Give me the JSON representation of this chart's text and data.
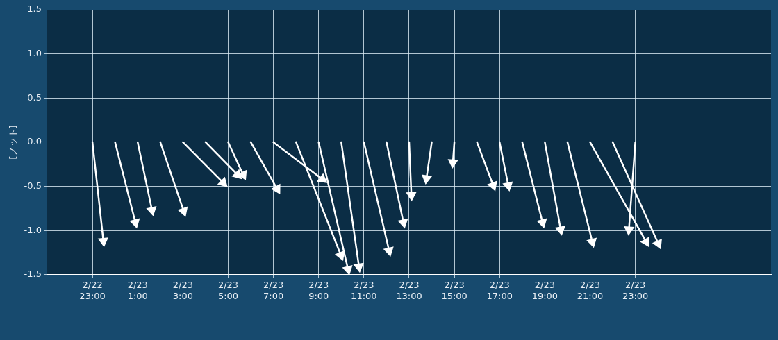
{
  "chart_data": {
    "type": "line",
    "ylabel": "[ノット]",
    "xlim": [
      "--02-22T21:00",
      "--02-24T05:00"
    ],
    "xticks": [
      {
        "value": "--02-22T23:00",
        "label": "2/22\n23:00"
      },
      {
        "value": "--02-23T01:00",
        "label": "2/23\n1:00"
      },
      {
        "value": "--02-23T03:00",
        "label": "2/23\n3:00"
      },
      {
        "value": "--02-23T05:00",
        "label": "2/23\n5:00"
      },
      {
        "value": "--02-23T07:00",
        "label": "2/23\n7:00"
      },
      {
        "value": "--02-23T09:00",
        "label": "2/23\n9:00"
      },
      {
        "value": "--02-23T11:00",
        "label": "2/23\n11:00"
      },
      {
        "value": "--02-23T13:00",
        "label": "2/23\n13:00"
      },
      {
        "value": "--02-23T15:00",
        "label": "2/23\n15:00"
      },
      {
        "value": "--02-23T17:00",
        "label": "2/23\n17:00"
      },
      {
        "value": "--02-23T19:00",
        "label": "2/23\n19:00"
      },
      {
        "value": "--02-23T21:00",
        "label": "2/23\n21:00"
      },
      {
        "value": "--02-23T23:00",
        "label": "2/23\n23:00"
      }
    ],
    "ylim": [
      -1.5,
      1.5
    ],
    "yticks": [
      -1.5,
      {
        "value": -1,
        "label": "-1.0"
      },
      -0.5,
      {
        "value": 0,
        "label": "0.0"
      },
      0.5,
      {
        "value": 1,
        "label": "1.0"
      },
      1.5
    ],
    "grid": true,
    "marker": "triangle",
    "legend": false,
    "series": [
      {
        "color": "#ffffff",
        "x": [
          "--02-22T23:00",
          "--02-22T23:29"
        ],
        "values": [
          0,
          -1.12
        ]
      },
      {
        "color": "#ffffff",
        "x": [
          "--02-23T00:00",
          "--02-23T00:54"
        ],
        "values": [
          0,
          -0.91
        ]
      },
      {
        "color": "#ffffff",
        "x": [
          "--02-23T01:00",
          "--02-23T01:38"
        ],
        "values": [
          0,
          -0.77
        ]
      },
      {
        "color": "#ffffff",
        "x": [
          "--02-23T02:00",
          "--02-23T03:02"
        ],
        "values": [
          0,
          -0.78
        ]
      },
      {
        "color": "#ffffff",
        "x": [
          "--02-23T03:00",
          "--02-23T04:47"
        ],
        "values": [
          0,
          -0.46
        ]
      },
      {
        "color": "#ffffff",
        "x": [
          "--02-23T04:00",
          "--02-23T05:25"
        ],
        "values": [
          0,
          -0.37
        ]
      },
      {
        "color": "#ffffff",
        "x": [
          "--02-23T05:00",
          "--02-23T05:40"
        ],
        "values": [
          0,
          -0.37
        ]
      },
      {
        "color": "#ffffff",
        "x": [
          "--02-23T06:00",
          "--02-23T07:10"
        ],
        "values": [
          0,
          -0.53
        ]
      },
      {
        "color": "#ffffff",
        "x": [
          "--02-23T07:00",
          "--02-23T09:10"
        ],
        "values": [
          0,
          -0.42
        ]
      },
      {
        "color": "#ffffff",
        "x": [
          "--02-23T08:00",
          "--02-23T09:59"
        ],
        "values": [
          0,
          -1.28
        ]
      },
      {
        "color": "#ffffff",
        "x": [
          "--02-23T09:00",
          "--02-23T10:18"
        ],
        "values": [
          0,
          -1.44
        ]
      },
      {
        "color": "#ffffff",
        "x": [
          "--02-23T10:00",
          "--02-23T10:47"
        ],
        "values": [
          0,
          -1.41
        ]
      },
      {
        "color": "#ffffff",
        "x": [
          "--02-23T11:00",
          "--02-23T12:07"
        ],
        "values": [
          0,
          -1.23
        ]
      },
      {
        "color": "#ffffff",
        "x": [
          "--02-23T12:00",
          "--02-23T12:45"
        ],
        "values": [
          0,
          -0.91
        ]
      },
      {
        "color": "#ffffff",
        "x": [
          "--02-23T13:00",
          "--02-23T13:06"
        ],
        "values": [
          0,
          -0.6
        ]
      },
      {
        "color": "#ffffff",
        "x": [
          "--02-23T14:00",
          "--02-23T13:46"
        ],
        "values": [
          0,
          -0.41
        ]
      },
      {
        "color": "#ffffff",
        "x": [
          "--02-23T15:00",
          "--02-23T14:56"
        ],
        "values": [
          0,
          -0.23
        ]
      },
      {
        "color": "#ffffff",
        "x": [
          "--02-23T16:00",
          "--02-23T16:43"
        ],
        "values": [
          0,
          -0.49
        ]
      },
      {
        "color": "#ffffff",
        "x": [
          "--02-23T17:00",
          "--02-23T17:23"
        ],
        "values": [
          0,
          -0.49
        ]
      },
      {
        "color": "#ffffff",
        "x": [
          "--02-23T18:00",
          "--02-23T18:54"
        ],
        "values": [
          0,
          -0.91
        ]
      },
      {
        "color": "#ffffff",
        "x": [
          "--02-23T19:00",
          "--02-23T19:42"
        ],
        "values": [
          0,
          -0.99
        ]
      },
      {
        "color": "#ffffff",
        "x": [
          "--02-23T20:00",
          "--02-23T21:06"
        ],
        "values": [
          0,
          -1.13
        ]
      },
      {
        "color": "#ffffff",
        "x": [
          "--02-23T21:00",
          "--02-23T23:29"
        ],
        "values": [
          0,
          -1.13
        ]
      },
      {
        "color": "#ffffff",
        "x": [
          "--02-23T22:00",
          "--02-24T00:01"
        ],
        "values": [
          0,
          -1.15
        ]
      },
      {
        "color": "#ffffff",
        "x": [
          "--02-23T23:00",
          "--02-23T22:43"
        ],
        "values": [
          0,
          -0.99
        ]
      }
    ]
  }
}
